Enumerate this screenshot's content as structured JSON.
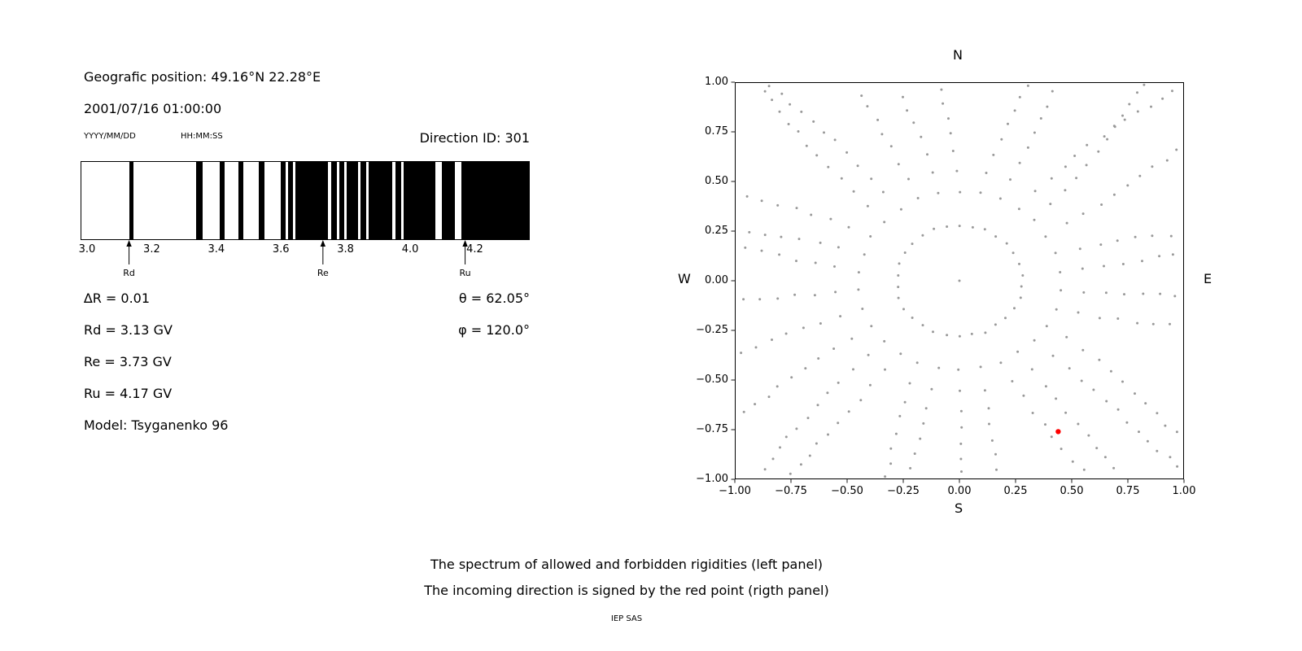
{
  "header": {
    "geographic_position": "Geografic position: 49.16°N 22.28°E",
    "datetime": "2001/07/16 01:00:00",
    "date_format": "YYYY/MM/DD",
    "time_format": "HH:MM:SS",
    "direction_id": "Direction ID: 301"
  },
  "cutoff_info": {
    "delta_r": "∆R = 0.01",
    "rd": "Rd = 3.13 GV",
    "re": "Re = 3.73 GV",
    "ru": "Ru = 4.17 GV",
    "model": "Model: Tsyganenko 96",
    "theta": "θ = 62.05°",
    "phi": "φ = 120.0°"
  },
  "captions": {
    "line1": "The spectrum of allowed and forbidden rigidities (left panel)",
    "line2": "The incoming direction is signed by the red point (rigth panel)",
    "credit": "IEP SAS"
  },
  "chart_data": [
    {
      "type": "bar",
      "name": "rigidity-spectrum",
      "description": "Barcode spectrum of allowed (black) and forbidden (white) rigidities in GV",
      "x_range_gv": [
        2.98,
        4.37
      ],
      "x_ticks": [
        {
          "value": 3.0,
          "label": "3.0"
        },
        {
          "value": 3.2,
          "label": "3.2"
        },
        {
          "value": 3.4,
          "label": "3.4"
        },
        {
          "value": 3.6,
          "label": "3.6"
        },
        {
          "value": 3.8,
          "label": "3.8"
        },
        {
          "value": 4.0,
          "label": "4.0"
        },
        {
          "value": 4.2,
          "label": "4.2"
        }
      ],
      "allowed_bands_gv": [
        [
          3.128,
          3.141
        ],
        [
          3.336,
          3.355
        ],
        [
          3.407,
          3.424
        ],
        [
          3.465,
          3.482
        ],
        [
          3.53,
          3.546
        ],
        [
          3.596,
          3.612
        ],
        [
          3.62,
          3.635
        ],
        [
          3.641,
          3.742
        ],
        [
          3.752,
          3.77
        ],
        [
          3.779,
          3.793
        ],
        [
          3.8,
          3.836
        ],
        [
          3.844,
          3.861
        ],
        [
          3.868,
          3.942
        ],
        [
          3.951,
          3.97
        ],
        [
          3.977,
          4.076
        ],
        [
          4.095,
          4.136
        ],
        [
          4.155,
          4.37
        ]
      ],
      "cutoff_markers": [
        {
          "label": "Rd",
          "value_gv": 3.13
        },
        {
          "label": "Re",
          "value_gv": 3.73
        },
        {
          "label": "Ru",
          "value_gv": 4.17
        }
      ],
      "band_color": "#000000"
    },
    {
      "type": "scatter",
      "name": "incoming-direction-map",
      "description": "Sky map of directions (gray dotted radial spokes); red point marks the incoming direction",
      "xlim": [
        -1,
        1
      ],
      "ylim": [
        -1,
        1
      ],
      "grid": false,
      "x_ticks": [
        {
          "value": -1.0,
          "label": "−1.00"
        },
        {
          "value": -0.75,
          "label": "−0.75"
        },
        {
          "value": -0.5,
          "label": "−0.50"
        },
        {
          "value": -0.25,
          "label": "−0.25"
        },
        {
          "value": 0.0,
          "label": "0.00"
        },
        {
          "value": 0.25,
          "label": "0.25"
        },
        {
          "value": 0.5,
          "label": "0.50"
        },
        {
          "value": 0.75,
          "label": "0.75"
        },
        {
          "value": 1.0,
          "label": "1.00"
        }
      ],
      "y_ticks": [
        {
          "value": 1.0,
          "label": "1.00"
        },
        {
          "value": 0.75,
          "label": "0.75"
        },
        {
          "value": 0.5,
          "label": "0.50"
        },
        {
          "value": 0.25,
          "label": "0.25"
        },
        {
          "value": 0.0,
          "label": "0.00"
        },
        {
          "value": -0.25,
          "label": "−0.25"
        },
        {
          "value": -0.5,
          "label": "−0.50"
        },
        {
          "value": -0.75,
          "label": "−0.75"
        },
        {
          "value": -1.0,
          "label": "−1.00"
        }
      ],
      "compass": {
        "top": "N",
        "bottom": "S",
        "left": "W",
        "right": "E"
      },
      "dot_color": "#999999",
      "center_point": {
        "x": 0,
        "y": 0
      },
      "spoke_pattern": {
        "n_spokes": 30,
        "r_inner": 0.28,
        "r_outer": 1.35,
        "dots_per_spoke": 14
      },
      "red_point": {
        "x": 0.44,
        "y": -0.76,
        "color": "#ff0000"
      }
    }
  ]
}
